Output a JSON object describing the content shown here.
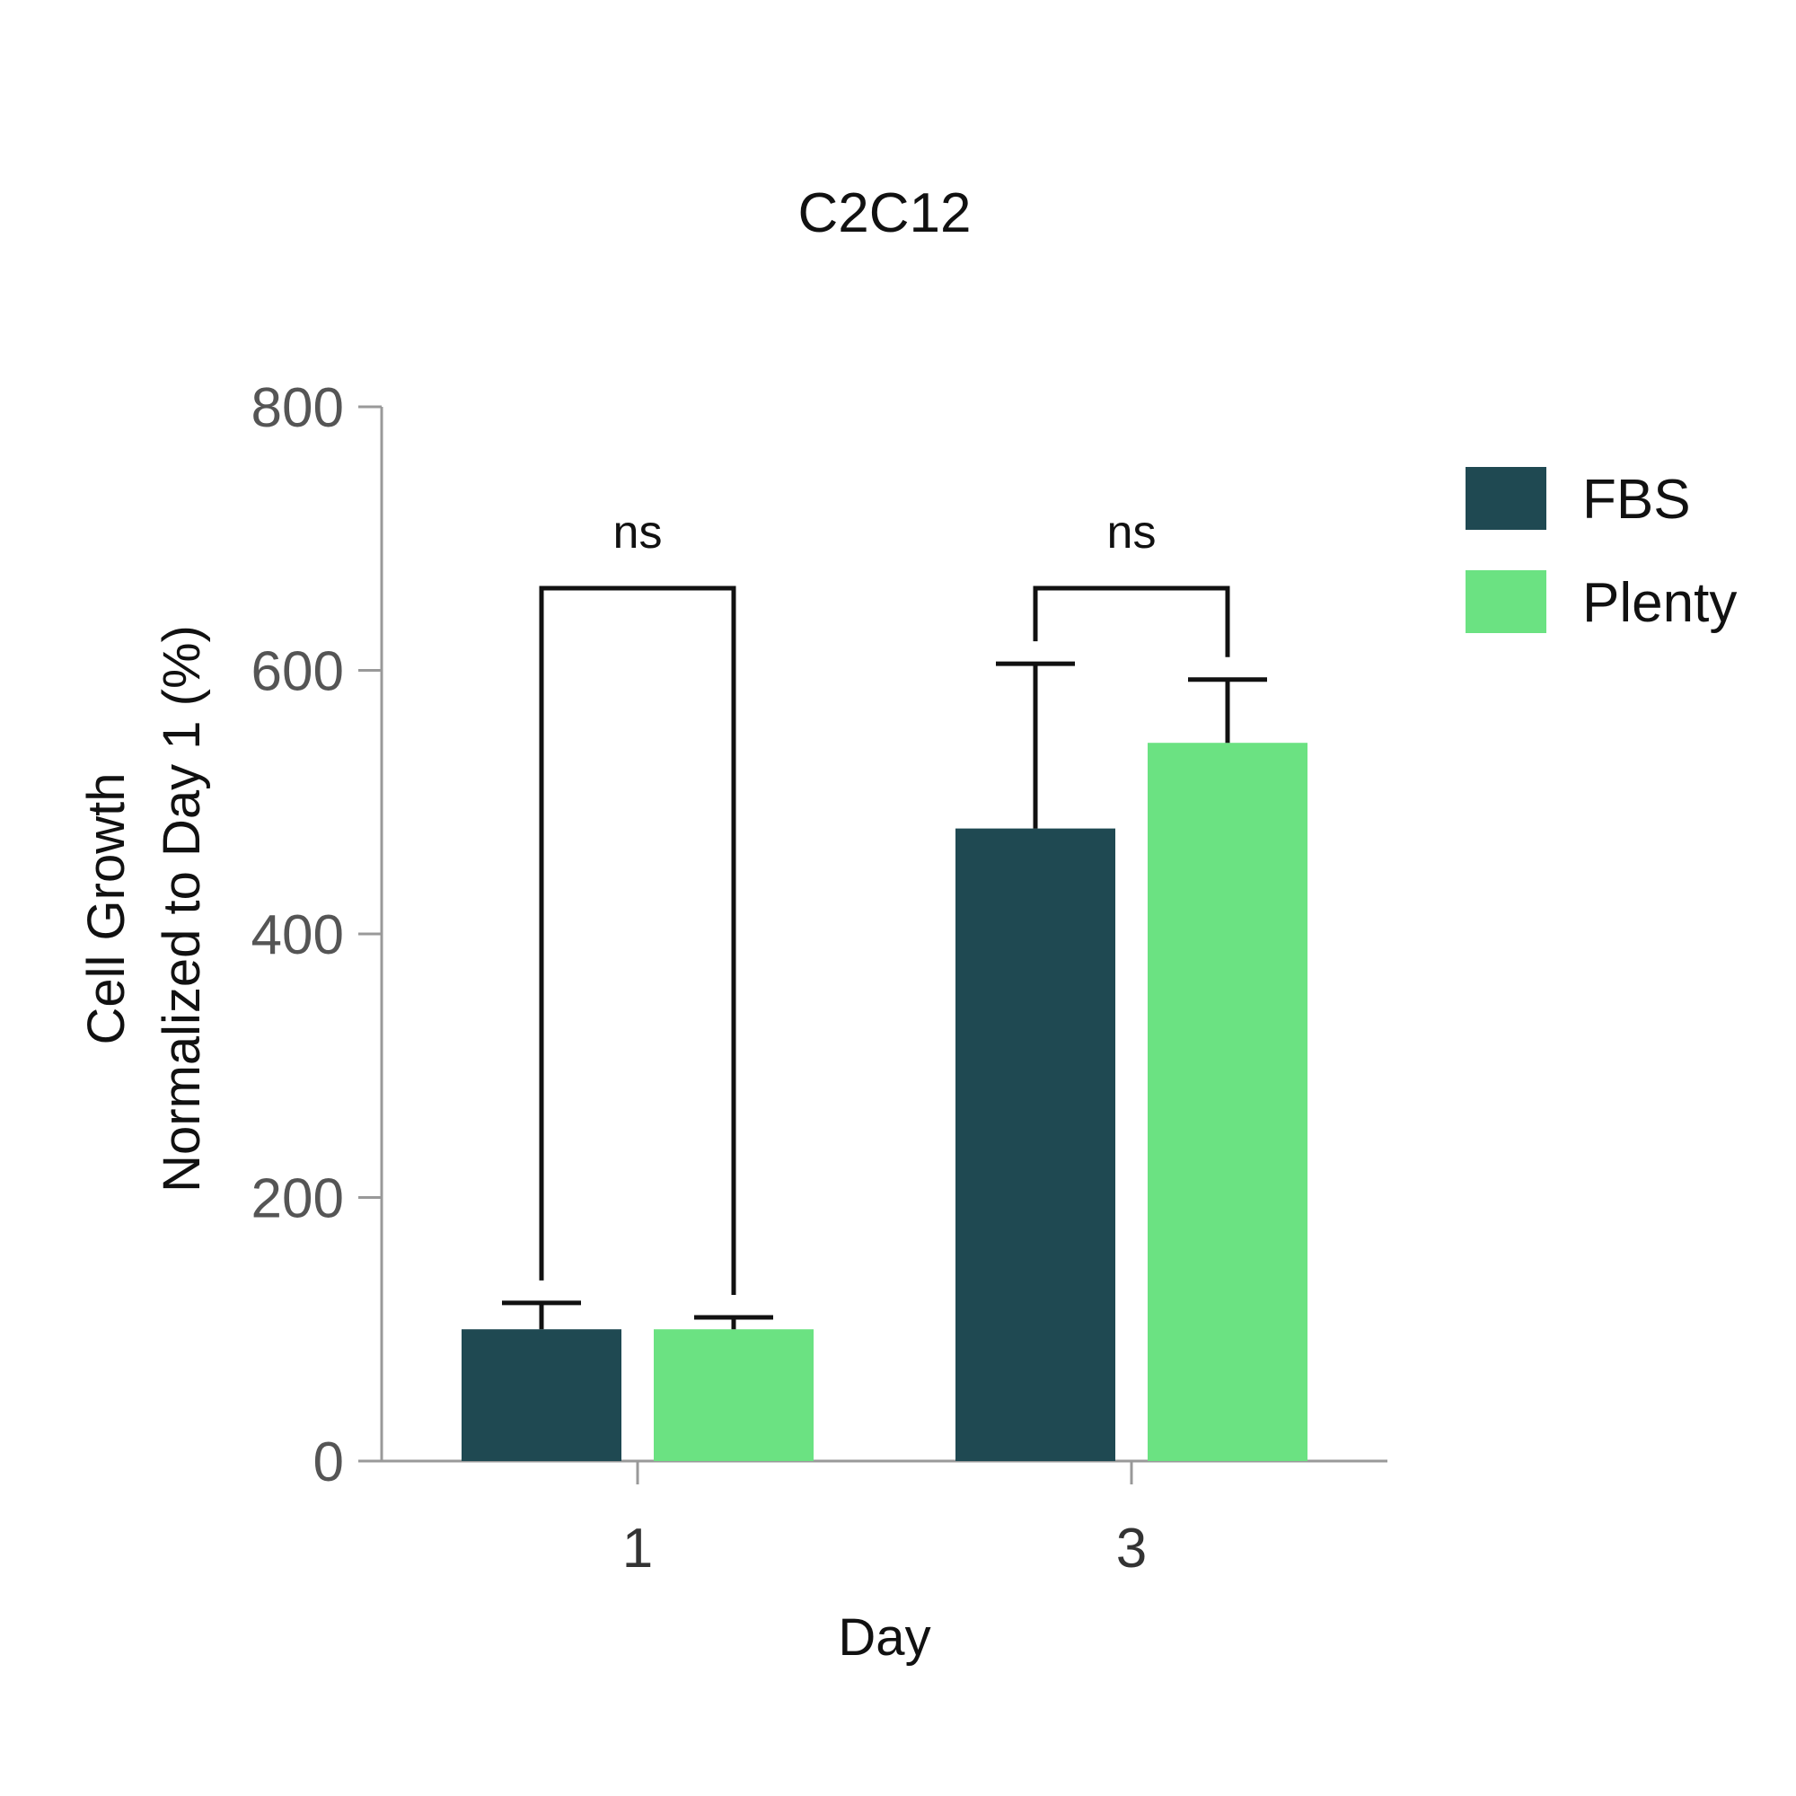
{
  "chart_data": {
    "type": "bar",
    "title": "C2C12",
    "xlabel": "Day",
    "ylabel_line1": "Cell Growth",
    "ylabel_line2": "Normalized to Day 1 (%)",
    "ylim": [
      0,
      800
    ],
    "yticks": [
      "0",
      "200",
      "400",
      "600",
      "800"
    ],
    "categories": [
      "1",
      "3"
    ],
    "legend_position": "right",
    "grid": false,
    "series": [
      {
        "name": "FBS",
        "color": "#1f4952",
        "values": [
          100,
          480
        ],
        "errors": [
          20,
          125
        ]
      },
      {
        "name": "Plenty",
        "color": "#6be282",
        "values": [
          100,
          545
        ],
        "errors": [
          9,
          48
        ]
      }
    ],
    "annotations": [
      "ns",
      "ns"
    ]
  }
}
